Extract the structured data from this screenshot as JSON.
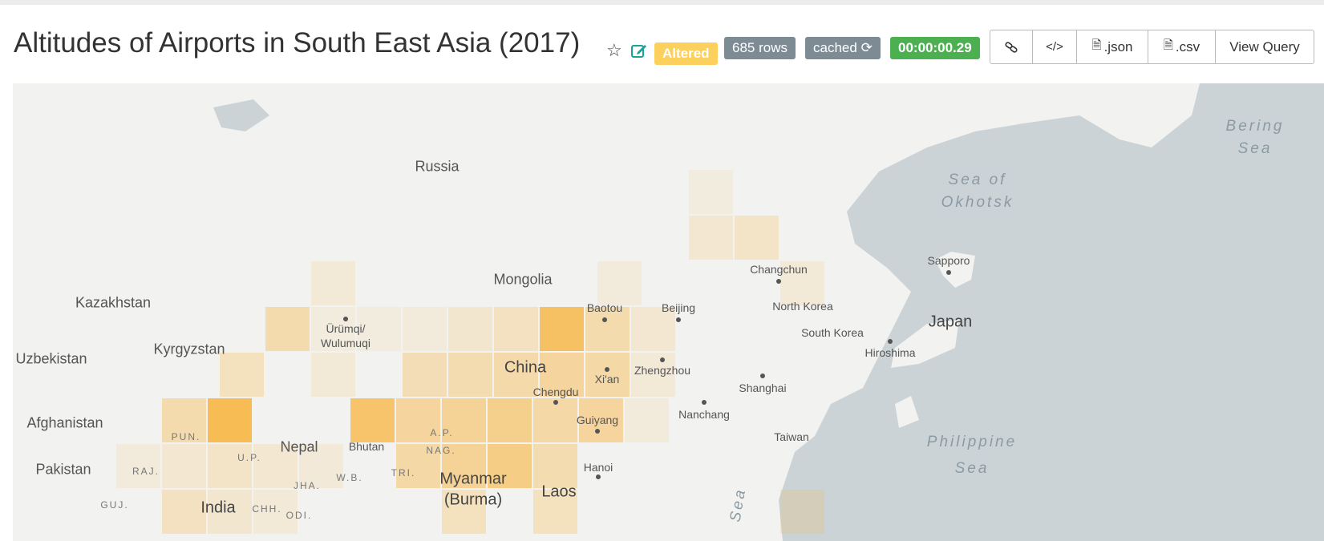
{
  "header": {
    "title": "Altitudes of Airports in South East Asia (2017)",
    "badge_altered": "Altered",
    "badge_rows": "685 rows",
    "badge_cached": "cached",
    "badge_time": "00:00:00.29"
  },
  "toolbar": {
    "json_label": ".json",
    "csv_label": ".csv",
    "view_query_label": "View Query"
  },
  "colors": {
    "altered": "#fcd05c",
    "neutral_badge": "#7d8b95",
    "time_badge": "#4caf50",
    "water": "#cbd3d6",
    "land": "#f2f2f0",
    "heat": "#f7b84a"
  },
  "map": {
    "countries": [
      "Russia",
      "Mongolia",
      "Kazakhstan",
      "Kyrgyzstan",
      "Uzbekistan",
      "Afghanistan",
      "Pakistan",
      "Nepal",
      "China",
      "India",
      "Myanmar",
      "(Burma)",
      "Laos",
      "Japan",
      "North Korea",
      "South Korea",
      "Taiwan",
      "Bhutan"
    ],
    "seas": [
      "Bering",
      "Sea",
      "Sea of",
      "Okhotsk",
      "Philippine",
      "Sea",
      "Sea"
    ],
    "cities": [
      "Sapporo",
      "Changchun",
      "Baotou",
      "Beijing",
      "Ürümqi/",
      "Wulumuqi",
      "Xi'an",
      "Zhengzhou",
      "Chengdu",
      "Guiyang",
      "Nanchang",
      "Shanghai",
      "Hiroshima",
      "Hanoi"
    ],
    "regions": [
      "PUN.",
      "U.P.",
      "RAJ.",
      "JHA.",
      "W.B.",
      "CHH.",
      "ODI.",
      "GUJ.",
      "NAG.",
      "A.P.",
      "TRI."
    ]
  }
}
